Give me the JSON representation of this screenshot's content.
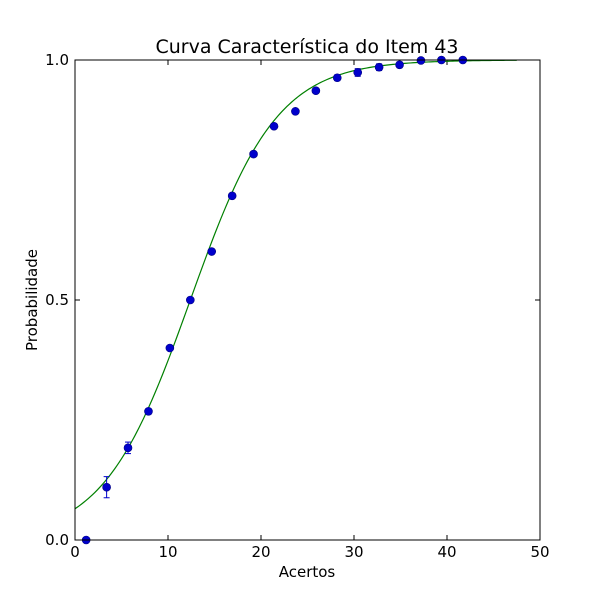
{
  "chart_data": {
    "type": "scatter",
    "title": "Curva Característica do Item 43",
    "xlabel": "Acertos",
    "ylabel": "Probabilidade",
    "xlim": [
      0,
      50
    ],
    "ylim": [
      0.0,
      1.0
    ],
    "xticks": [
      "0",
      "10",
      "20",
      "30",
      "40",
      "50"
    ],
    "yticks": [
      "0.0",
      "0.5",
      "1.0"
    ],
    "grid": false,
    "series": [
      {
        "kind": "points_with_error_bars",
        "color": "#0000cc",
        "points": [
          {
            "x": 1.2,
            "y": 0.0,
            "err": 0.004
          },
          {
            "x": 3.4,
            "y": 0.11,
            "err": 0.022
          },
          {
            "x": 5.7,
            "y": 0.192,
            "err": 0.012
          },
          {
            "x": 7.9,
            "y": 0.268,
            "err": 0.006
          },
          {
            "x": 10.2,
            "y": 0.4,
            "err": 0.004
          },
          {
            "x": 12.4,
            "y": 0.5,
            "err": 0.004
          },
          {
            "x": 14.7,
            "y": 0.601,
            "err": 0.004
          },
          {
            "x": 16.9,
            "y": 0.717,
            "err": 0.004
          },
          {
            "x": 19.2,
            "y": 0.804,
            "err": 0.004
          },
          {
            "x": 21.4,
            "y": 0.862,
            "err": 0.004
          },
          {
            "x": 23.7,
            "y": 0.893,
            "err": 0.004
          },
          {
            "x": 25.9,
            "y": 0.936,
            "err": 0.004
          },
          {
            "x": 28.2,
            "y": 0.963,
            "err": 0.006
          },
          {
            "x": 30.4,
            "y": 0.974,
            "err": 0.008
          },
          {
            "x": 32.7,
            "y": 0.985,
            "err": 0.007
          },
          {
            "x": 34.9,
            "y": 0.99,
            "err": 0.006
          },
          {
            "x": 37.2,
            "y": 0.999,
            "err": 0.004
          },
          {
            "x": 39.4,
            "y": 1.0,
            "err": 0.003
          },
          {
            "x": 41.7,
            "y": 1.0,
            "err": 0.002
          }
        ]
      },
      {
        "kind": "logistic_curve",
        "color": "#008000",
        "x_range": [
          0,
          47.5
        ],
        "midpoint": 12.4,
        "slope": 0.215
      }
    ]
  }
}
